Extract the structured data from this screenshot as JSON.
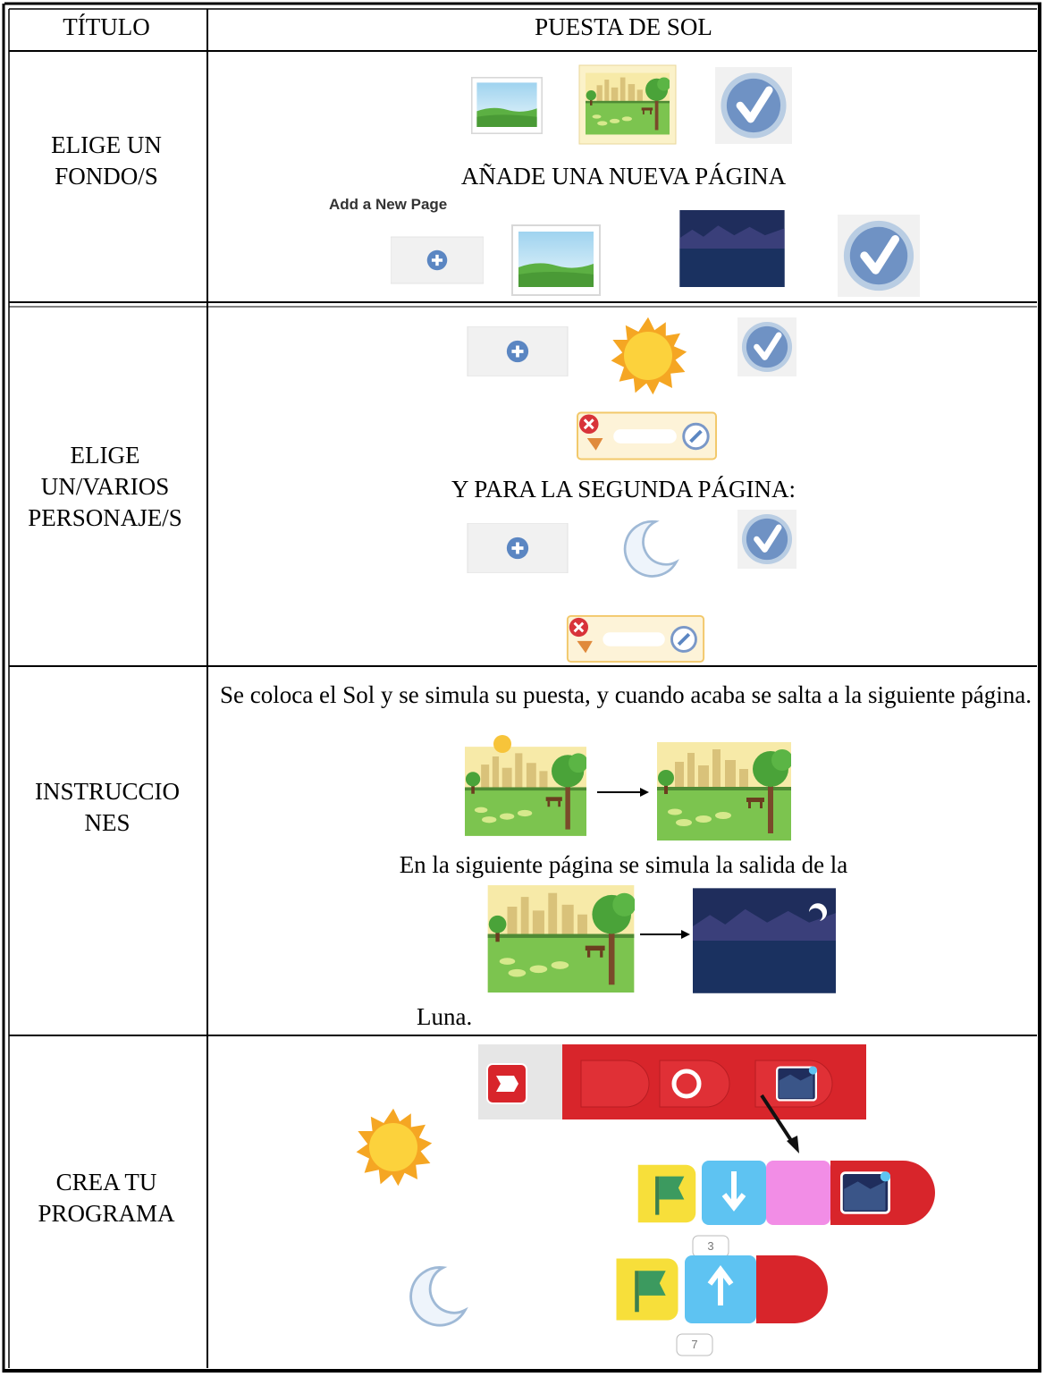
{
  "header": {
    "label": "TÍTULO",
    "title": "PUESTA DE SOL"
  },
  "rows": [
    {
      "label": "ELIGE UN FONDO/S",
      "caption": "AÑADE UNA NUEVA PÁGINA",
      "tooltip": "Add a New Page"
    },
    {
      "label": "ELIGE UN/VARIOS PERSONAJE/S",
      "caption": "Y PARA LA SEGUNDA PÁGINA:"
    },
    {
      "label": "INSTRUCCIONES",
      "text": "Se coloca el Sol y se simula su puesta, y cuando acaba se salta a la siguiente página.",
      "text2": "En la siguiente página se simula la salida de la",
      "text3": "Luna."
    },
    {
      "label": "CREA TU PROGRAMA",
      "block_values": [
        3,
        7
      ]
    }
  ]
}
